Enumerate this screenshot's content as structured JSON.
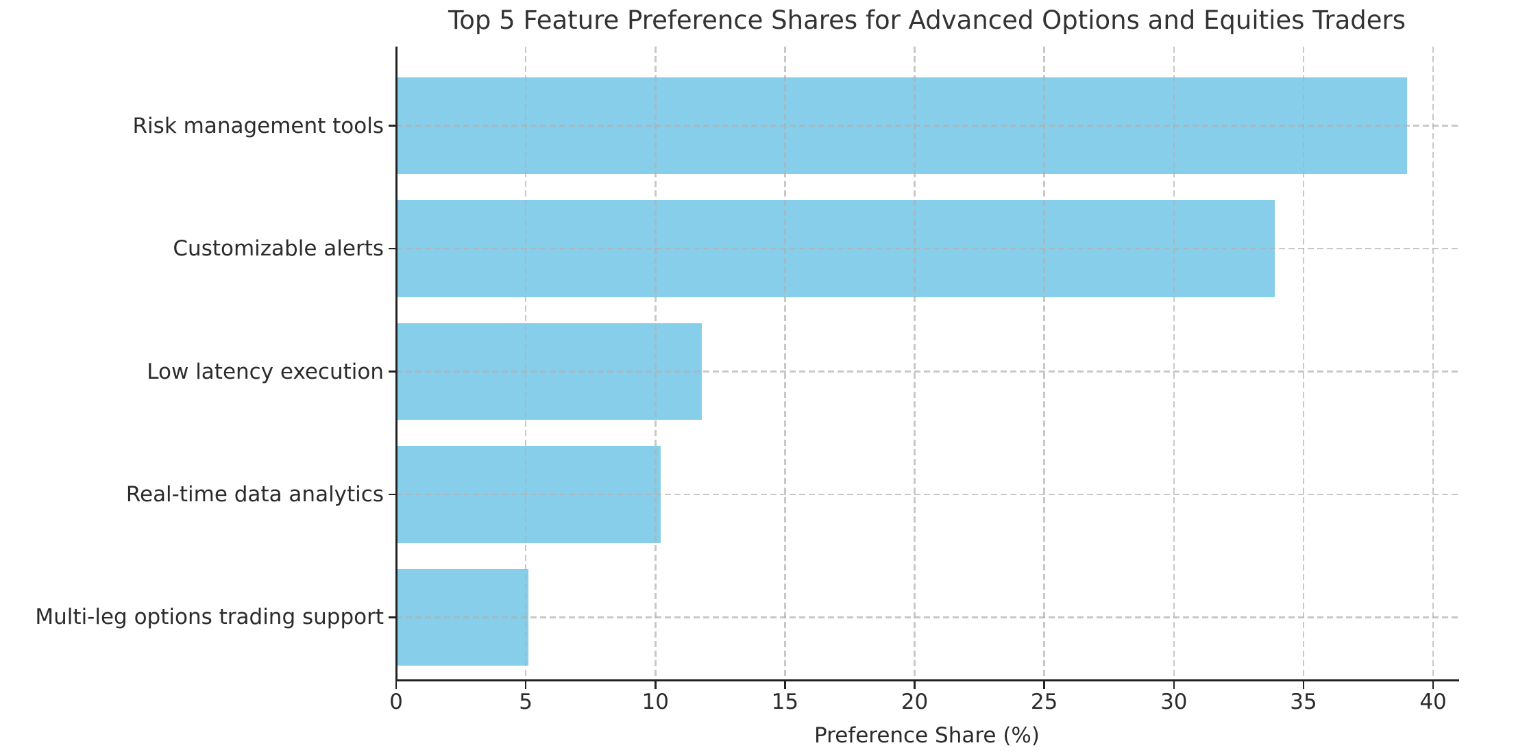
{
  "chart_data": {
    "type": "bar",
    "orientation": "horizontal",
    "title": "Top 5 Feature Preference Shares for Advanced Options and Equities Traders",
    "xlabel": "Preference Share (%)",
    "ylabel": "",
    "categories": [
      "Risk management tools",
      "Customizable alerts",
      "Low latency execution",
      "Real-time data analytics",
      "Multi-leg options trading support"
    ],
    "values": [
      39.0,
      33.9,
      11.8,
      10.2,
      5.1
    ],
    "xticks": [
      0,
      5,
      10,
      15,
      20,
      25,
      30,
      35,
      40
    ],
    "xlim": [
      0,
      40.95
    ],
    "grid": "both-dashed",
    "legend": "none",
    "colors": {
      "bar_fill": "#87CEEB",
      "grid": "#b0b0b0",
      "spine": "#222222",
      "text": "#2b2b2b",
      "background": "#ffffff"
    }
  }
}
